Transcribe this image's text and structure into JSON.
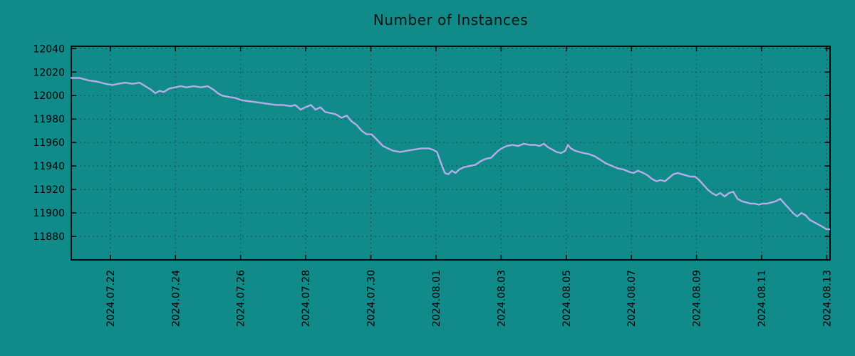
{
  "page": {
    "background": "#118a8a"
  },
  "chart_data": {
    "type": "line",
    "title": "Number of Instances",
    "xlim": [
      -1.2,
      22.1
    ],
    "ylim": [
      11860,
      12042
    ],
    "x_ticks": [
      0,
      2,
      4,
      6,
      8,
      10,
      12,
      14,
      16,
      18,
      20,
      22
    ],
    "x_tick_labels": [
      "2024.07.22",
      "2024.07.24",
      "2024.07.26",
      "2024.07.28",
      "2024.07.30",
      "2024.08.01",
      "2024.08.03",
      "2024.08.05",
      "2024.08.07",
      "2024.08.09",
      "2024.08.11",
      "2024.08.13"
    ],
    "y_ticks": [
      11880,
      11900,
      11920,
      11940,
      11960,
      11980,
      12000,
      12020,
      12040
    ],
    "grid": {
      "color": "#1c1c1c",
      "dash": "2 4",
      "opacity": 0.55
    },
    "axis_color": "#000000",
    "text_color": "#000000",
    "series": [
      {
        "name": "instances",
        "color": "#b6ace9",
        "x": [
          -1.2,
          -0.94,
          -0.68,
          -0.42,
          -0.15,
          0.07,
          0.24,
          0.46,
          0.68,
          0.9,
          1.07,
          1.25,
          1.38,
          1.51,
          1.64,
          1.81,
          1.99,
          2.16,
          2.34,
          2.56,
          2.78,
          2.99,
          3.17,
          3.3,
          3.43,
          3.61,
          3.83,
          4.04,
          4.31,
          4.57,
          4.83,
          5.09,
          5.31,
          5.53,
          5.68,
          5.84,
          5.99,
          6.16,
          6.3,
          6.45,
          6.6,
          6.78,
          6.93,
          7.1,
          7.26,
          7.41,
          7.56,
          7.72,
          7.87,
          8.02,
          8.2,
          8.37,
          8.52,
          8.68,
          8.9,
          9.11,
          9.33,
          9.55,
          9.77,
          9.9,
          10.03,
          10.16,
          10.27,
          10.38,
          10.49,
          10.6,
          10.71,
          10.86,
          11.04,
          11.21,
          11.37,
          11.52,
          11.69,
          11.8,
          11.91,
          12.02,
          12.17,
          12.35,
          12.52,
          12.7,
          12.87,
          13.05,
          13.18,
          13.31,
          13.44,
          13.57,
          13.7,
          13.84,
          13.97,
          14.05,
          14.14,
          14.27,
          14.4,
          14.54,
          14.71,
          14.89,
          15.06,
          15.23,
          15.41,
          15.58,
          15.76,
          15.93,
          16.07,
          16.2,
          16.37,
          16.5,
          16.63,
          16.77,
          16.9,
          17.03,
          17.16,
          17.29,
          17.42,
          17.55,
          17.68,
          17.81,
          17.95,
          18.08,
          18.21,
          18.34,
          18.47,
          18.6,
          18.73,
          18.86,
          19.0,
          19.13,
          19.26,
          19.39,
          19.52,
          19.65,
          19.78,
          19.91,
          20.04,
          20.17,
          20.31,
          20.44,
          20.57,
          20.7,
          20.83,
          20.96,
          21.09,
          21.22,
          21.35,
          21.48,
          21.62,
          21.75,
          21.88,
          21.99,
          22.08
        ],
        "y": [
          12015,
          12015,
          12013,
          12012,
          12010,
          12009,
          12010,
          12011,
          12010,
          12011,
          12008,
          12005,
          12002,
          12004,
          12003,
          12006,
          12007,
          12008,
          12007,
          12008,
          12007,
          12008,
          12005,
          12002,
          12000,
          11999,
          11998,
          11996,
          11995,
          11994,
          11993,
          11992,
          11992,
          11991,
          11992,
          11988,
          11990,
          11992,
          11988,
          11990,
          11986,
          11985,
          11984,
          11981,
          11983,
          11978,
          11975,
          11970,
          11967,
          11967,
          11962,
          11957,
          11955,
          11953,
          11952,
          11953,
          11954,
          11955,
          11955,
          11954,
          11952,
          11942,
          11934,
          11933,
          11936,
          11934,
          11937,
          11939,
          11940,
          11941,
          11944,
          11946,
          11947,
          11950,
          11953,
          11955,
          11957,
          11958,
          11957,
          11959,
          11958,
          11958,
          11957,
          11959,
          11956,
          11954,
          11952,
          11951,
          11953,
          11958,
          11955,
          11953,
          11952,
          11951,
          11950,
          11948,
          11945,
          11942,
          11940,
          11938,
          11937,
          11935,
          11934,
          11936,
          11934,
          11932,
          11929,
          11927,
          11928,
          11927,
          11930,
          11933,
          11934,
          11933,
          11932,
          11931,
          11931,
          11928,
          11924,
          11920,
          11917,
          11915,
          11917,
          11914,
          11917,
          11918,
          11912,
          11910,
          11909,
          11908,
          11908,
          11907,
          11908,
          11908,
          11909,
          11910,
          11912,
          11908,
          11904,
          11900,
          11897,
          11900,
          11898,
          11894,
          11892,
          11890,
          11888,
          11886,
          11886
        ]
      }
    ]
  }
}
